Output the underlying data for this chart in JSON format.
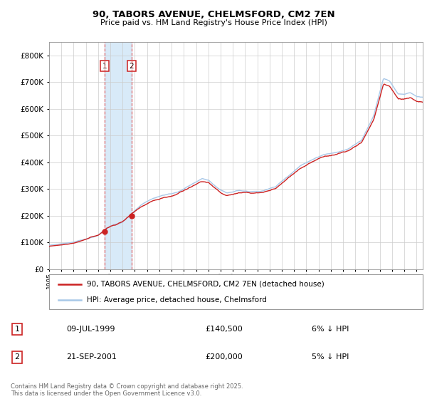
{
  "title": "90, TABORS AVENUE, CHELMSFORD, CM2 7EN",
  "subtitle": "Price paid vs. HM Land Registry's House Price Index (HPI)",
  "legend_line1": "90, TABORS AVENUE, CHELMSFORD, CM2 7EN (detached house)",
  "legend_line2": "HPI: Average price, detached house, Chelmsford",
  "transaction1_date": "09-JUL-1999",
  "transaction1_price": "£140,500",
  "transaction1_hpi": "6% ↓ HPI",
  "transaction2_date": "21-SEP-2001",
  "transaction2_price": "£200,000",
  "transaction2_hpi": "5% ↓ HPI",
  "footer": "Contains HM Land Registry data © Crown copyright and database right 2025.\nThis data is licensed under the Open Government Licence v3.0.",
  "hpi_color": "#a8c8e8",
  "price_color": "#cc2222",
  "vline_color": "#dd4444",
  "span_color": "#d8eaf8",
  "background_color": "#ffffff",
  "grid_color": "#cccccc",
  "ylim_max": 850000,
  "yticks": [
    0,
    100000,
    200000,
    300000,
    400000,
    500000,
    600000,
    700000,
    800000
  ],
  "xlim_start": 1995.0,
  "xlim_end": 2025.5,
  "t1_x": 1999.54,
  "t2_x": 2001.72,
  "t1_price": 140500,
  "t2_price": 200000
}
